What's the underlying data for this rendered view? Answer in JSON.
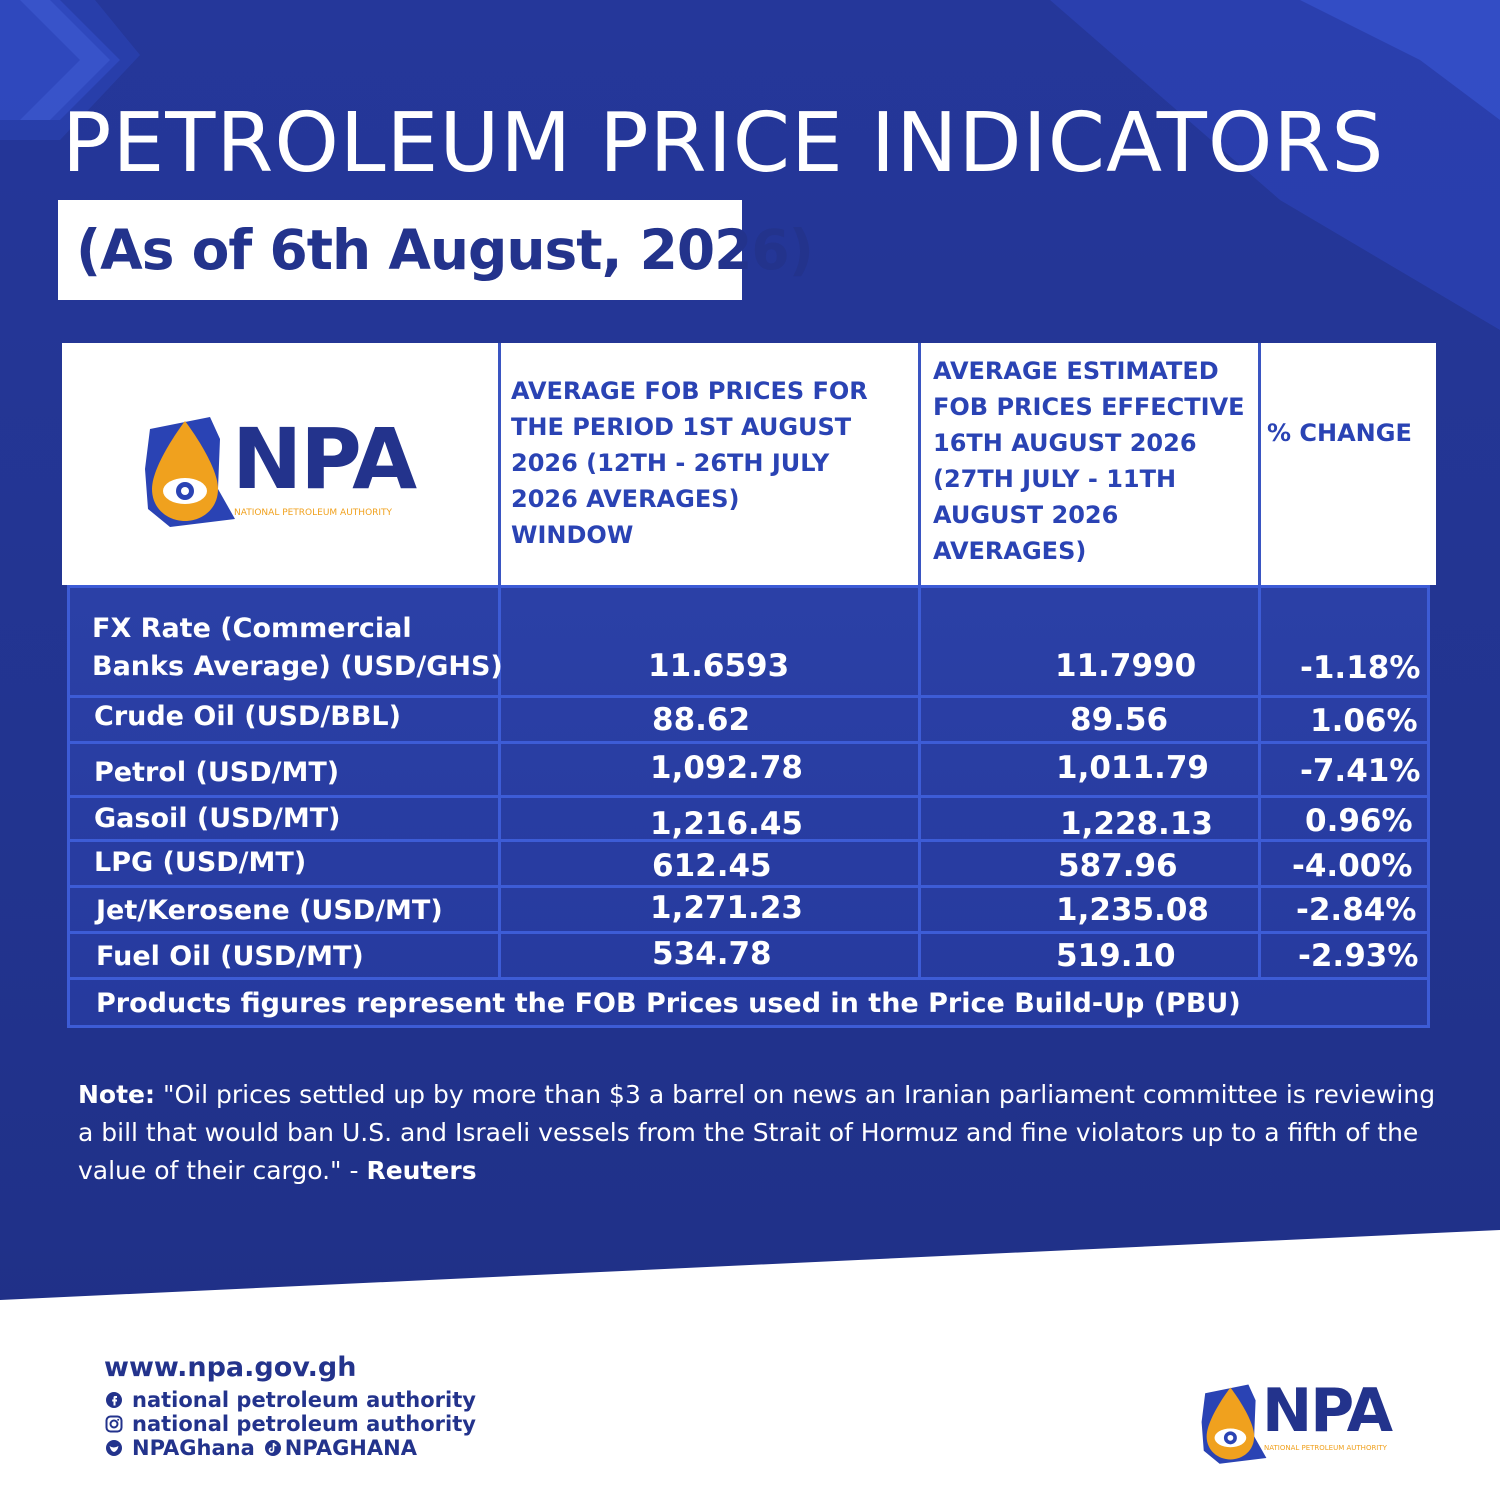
{
  "title": "PETROLEUM PRICE INDICATORS",
  "subtitle": "(As of 6th August, 2026)",
  "logo": {
    "wordmark": "NPA",
    "tagline": "NATIONAL PETROLEUM AUTHORITY",
    "icon": "oil-drop-eye-icon"
  },
  "table": {
    "headers": {
      "period1": "AVERAGE FOB PRICES FOR\nTHE PERIOD  1ST AUGUST\n2026 (12TH - 26TH JULY\n 2026 AVERAGES)\nWINDOW",
      "period2": "AVERAGE ESTIMATED\nFOB PRICES EFFECTIVE\n16TH AUGUST 2026\n(27TH JULY - 11TH\nAUGUST 2026\nAVERAGES)",
      "change": "% CHANGE"
    },
    "rows": [
      {
        "label": "FX Rate (Commercial\nBanks Average) (USD/GHS)",
        "v1": "11.6593",
        "v2": "11.7990",
        "pct": "-1.18%"
      },
      {
        "label": "Crude Oil (USD/BBL)",
        "v1": "88.62",
        "v2": "89.56",
        "pct": "1.06%"
      },
      {
        "label": "Petrol (USD/MT)",
        "v1": "1,092.78",
        "v2": "1,011.79",
        "pct": "-7.41%"
      },
      {
        "label": "Gasoil (USD/MT)",
        "v1": "1,216.45",
        "v2": "1,228.13",
        "pct": "0.96%"
      },
      {
        "label": "LPG (USD/MT)",
        "v1": "612.45",
        "v2": "587.96",
        "pct": "-4.00%"
      },
      {
        "label": "Jet/Kerosene (USD/MT)",
        "v1": "1,271.23",
        "v2": "1,235.08",
        "pct": "-2.84%"
      },
      {
        "label": "Fuel Oil (USD/MT)",
        "v1": "534.78",
        "v2": "519.10",
        "pct": "-2.93%"
      }
    ],
    "footnote": "Products figures represent the FOB Prices used in the Price Build-Up (PBU)"
  },
  "note": {
    "label": "Note:",
    "text": " \"Oil prices settled up by more than $3 a barrel on news an Iranian parliament committee is reviewing a bill that would ban U.S. and Israeli vessels from the Strait of Hormuz and fine violators up to a fifth of the value of their cargo.\" - ",
    "source": "Reuters"
  },
  "contacts": {
    "website": "www.npa.gov.gh",
    "facebook": "national petroleum authority",
    "instagram": "national petroleum authority",
    "twitter": "NPAGhana",
    "tiktok": "NPAGHANA"
  },
  "colors": {
    "background": "#22338f",
    "accent_blue": "#2a43b4",
    "gold": "#f0a11e",
    "white": "#ffffff"
  }
}
